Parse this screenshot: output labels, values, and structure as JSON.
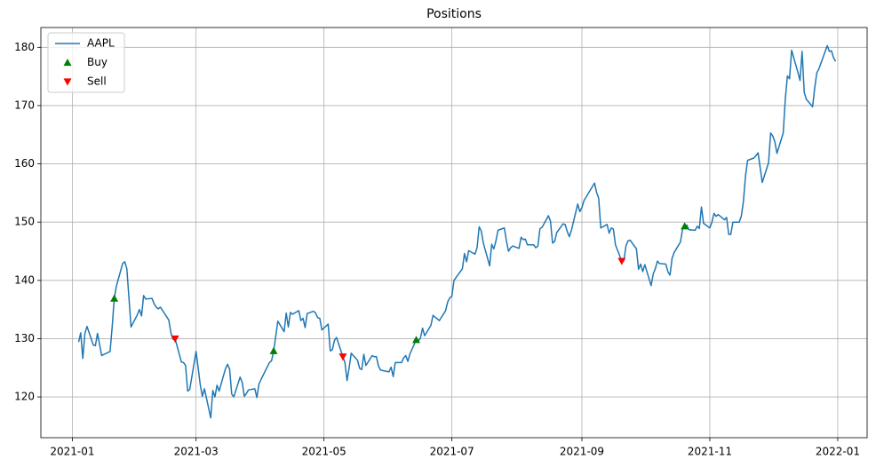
{
  "chart_data": {
    "type": "line",
    "title": "Positions",
    "xlim": [
      -15,
      379
    ],
    "ylim": [
      113,
      183.4
    ],
    "xticks": [
      {
        "value": 0,
        "label": "2021-01"
      },
      {
        "value": 59,
        "label": "2021-03"
      },
      {
        "value": 120,
        "label": "2021-05"
      },
      {
        "value": 181,
        "label": "2021-07"
      },
      {
        "value": 243,
        "label": "2021-09"
      },
      {
        "value": 304,
        "label": "2021-11"
      },
      {
        "value": 365,
        "label": "2022-01"
      }
    ],
    "yticks": [
      120,
      130,
      140,
      150,
      160,
      170,
      180
    ],
    "grid": true,
    "legend": "upper left",
    "series": [
      {
        "name": "AAPL",
        "color": "#1f77b4",
        "marker": "none",
        "x": [
          3,
          4,
          5,
          6,
          7,
          10,
          11,
          12,
          13,
          14,
          18,
          19,
          20,
          21,
          24,
          25,
          26,
          27,
          28,
          31,
          32,
          33,
          34,
          35,
          38,
          39,
          40,
          41,
          42,
          46,
          47,
          48,
          49,
          52,
          53,
          54,
          55,
          56,
          59,
          60,
          61,
          62,
          63,
          66,
          67,
          68,
          69,
          70,
          73,
          74,
          75,
          76,
          77,
          80,
          81,
          82,
          83,
          84,
          87,
          88,
          89,
          90,
          94,
          95,
          96,
          97,
          98,
          101,
          102,
          103,
          104,
          105,
          108,
          109,
          110,
          111,
          112,
          115,
          116,
          117,
          118,
          119,
          122,
          123,
          124,
          125,
          126,
          129,
          130,
          131,
          132,
          133,
          136,
          137,
          138,
          139,
          140,
          143,
          144,
          145,
          146,
          147,
          151,
          152,
          153,
          154,
          157,
          158,
          159,
          160,
          161,
          164,
          165,
          166,
          167,
          168,
          171,
          172,
          173,
          174,
          175,
          178,
          179,
          180,
          181,
          182,
          186,
          187,
          188,
          189,
          192,
          193,
          194,
          195,
          196,
          199,
          200,
          201,
          202,
          203,
          206,
          207,
          208,
          209,
          210,
          213,
          214,
          215,
          216,
          217,
          220,
          221,
          222,
          223,
          224,
          227,
          228,
          229,
          230,
          231,
          234,
          235,
          236,
          237,
          238,
          241,
          242,
          243,
          244,
          245,
          249,
          250,
          251,
          252,
          255,
          256,
          257,
          258,
          259,
          262,
          263,
          264,
          265,
          266,
          269,
          270,
          271,
          272,
          273,
          276,
          277,
          278,
          279,
          280,
          283,
          284,
          285,
          286,
          287,
          290,
          291,
          292,
          293,
          294,
          297,
          298,
          299,
          300,
          301,
          304,
          305,
          306,
          307,
          308,
          311,
          312,
          313,
          314,
          315,
          318,
          319,
          320,
          321,
          322,
          325,
          326,
          327,
          329,
          332,
          333,
          334,
          335,
          336,
          339,
          340,
          341,
          342,
          343,
          346,
          347,
          348,
          349,
          350,
          353,
          354,
          355,
          356,
          360,
          361,
          362,
          363,
          364
        ],
        "values": [
          129.4,
          131,
          126.6,
          130.9,
          132.1,
          128.9,
          128.8,
          130.9,
          129,
          127.1,
          127.8,
          132,
          136.9,
          139,
          142.9,
          143.2,
          142,
          137,
          132,
          134.1,
          135,
          133.9,
          137.4,
          136.8,
          136.9,
          136,
          135.4,
          135.1,
          135.4,
          133.2,
          131,
          129.9,
          130,
          126,
          125.9,
          125.4,
          121,
          121.3,
          127.8,
          125,
          122.1,
          120.1,
          121.4,
          116.4,
          121.1,
          120,
          122,
          121,
          124.8,
          125.6,
          124.8,
          120.5,
          120,
          123.4,
          122.5,
          120.1,
          120.6,
          121.2,
          121.4,
          119.9,
          122.2,
          123,
          125.9,
          126.2,
          127.9,
          130.4,
          133,
          131.2,
          134.4,
          132,
          134.5,
          134.2,
          134.8,
          133.1,
          133.5,
          131.9,
          134.3,
          134.7,
          134.4,
          133.6,
          133.5,
          131.5,
          132.5,
          127.9,
          128.1,
          129.7,
          130.2,
          126.9,
          125.9,
          122.8,
          125,
          127.5,
          126.3,
          124.9,
          124.7,
          127.3,
          125.4,
          127.1,
          126.9,
          126.9,
          125.3,
          124.6,
          124.3,
          125.1,
          123.5,
          125.9,
          125.9,
          126.7,
          127.1,
          126.1,
          127.4,
          129.8,
          129.6,
          130.1,
          131.8,
          130.5,
          132.3,
          134,
          133.7,
          133.4,
          133.1,
          134.8,
          136.3,
          137,
          137.3,
          140,
          142,
          144.6,
          143.2,
          145.1,
          144.5,
          145.6,
          149.2,
          148.5,
          146.4,
          142.5,
          146.2,
          145.4,
          146.8,
          148.6,
          149,
          146.8,
          145,
          145.6,
          145.9,
          145.5,
          147.4,
          147,
          147.1,
          146.1,
          146.1,
          145.6,
          145.9,
          148.9,
          149.1,
          151.1,
          150.2,
          146.4,
          146.7,
          148.2,
          149.7,
          149.6,
          148.4,
          147.5,
          148.6,
          153.1,
          151.8,
          152.5,
          153.7,
          154.3,
          156.7,
          155.1,
          154.1,
          149,
          149.6,
          148.1,
          149,
          148.8,
          146.1,
          143.3,
          143.4,
          145.9,
          146.8,
          146.9,
          145.4,
          141.9,
          142.8,
          141.5,
          142.7,
          139.1,
          141.1,
          142,
          143.3,
          142.9,
          142.8,
          141.5,
          140.9,
          143.8,
          144.8,
          146.6,
          148.8,
          149.3,
          149.5,
          148.7,
          148.6,
          149.3,
          148.9,
          152.6,
          149.8,
          149,
          150,
          151.5,
          151,
          151.3,
          150.4,
          150.8,
          147.9,
          147.9,
          150,
          150,
          151,
          153.5,
          157.9,
          160.6,
          161,
          161.4,
          161.9,
          156.8,
          160.2,
          165.3,
          164.8,
          163.8,
          161.8,
          165.3,
          171.2,
          175.1,
          174.6,
          179.5,
          175.7,
          174.3,
          179.3,
          172.3,
          171.1,
          169.8,
          173,
          175.6,
          176.3,
          180.3,
          179.3,
          179.4,
          178.2,
          177.6
        ]
      },
      {
        "name": "Buy",
        "color": "#008000",
        "marker": "^",
        "x": [
          20,
          96,
          164,
          292
        ],
        "values": [
          136.9,
          127.9,
          129.8,
          149.3
        ]
      },
      {
        "name": "Sell",
        "color": "#ff0000",
        "marker": "v",
        "x": [
          49,
          129,
          262
        ],
        "values": [
          130,
          126.9,
          143.3
        ]
      }
    ]
  }
}
